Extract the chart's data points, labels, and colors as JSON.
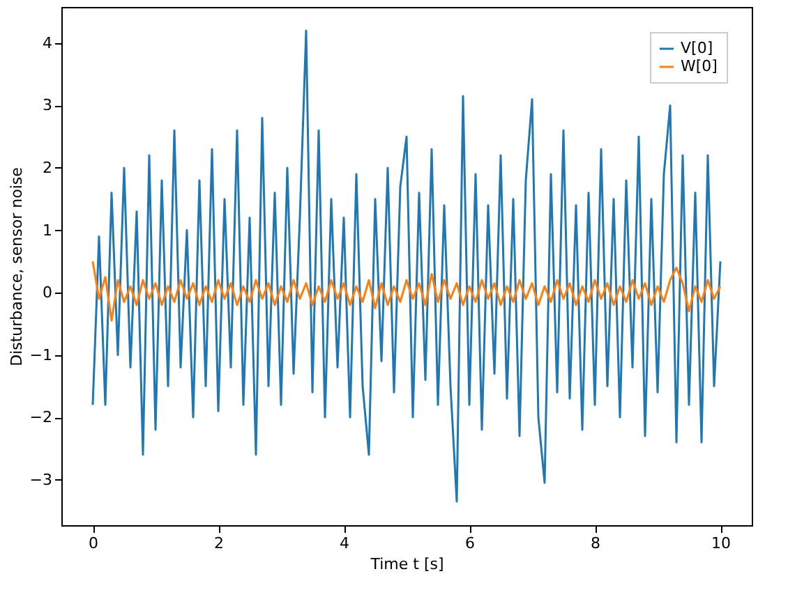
{
  "chart_data": {
    "type": "line",
    "xlabel": "Time t [s]",
    "ylabel": "Disturbance, sensor noise",
    "x": [
      0,
      0.1,
      0.2,
      0.3,
      0.4,
      0.5,
      0.6,
      0.7,
      0.8,
      0.9,
      1,
      1.1,
      1.2,
      1.3,
      1.4,
      1.5,
      1.6,
      1.7,
      1.8,
      1.9,
      2,
      2.1,
      2.2,
      2.3,
      2.4,
      2.5,
      2.6,
      2.7,
      2.8,
      2.9,
      3,
      3.1,
      3.2,
      3.3,
      3.4,
      3.5,
      3.6,
      3.7,
      3.8,
      3.9,
      4,
      4.1,
      4.2,
      4.3,
      4.4,
      4.5,
      4.6,
      4.7,
      4.8,
      4.9,
      5,
      5.1,
      5.2,
      5.3,
      5.4,
      5.5,
      5.6,
      5.7,
      5.8,
      5.9,
      6,
      6.1,
      6.2,
      6.3,
      6.4,
      6.5,
      6.6,
      6.7,
      6.8,
      6.9,
      7,
      7.1,
      7.2,
      7.3,
      7.4,
      7.5,
      7.6,
      7.7,
      7.8,
      7.9,
      8,
      8.1,
      8.2,
      8.3,
      8.4,
      8.5,
      8.6,
      8.7,
      8.8,
      8.9,
      9,
      9.1,
      9.2,
      9.3,
      9.4,
      9.5,
      9.6,
      9.7,
      9.8,
      9.9,
      10
    ],
    "series": [
      {
        "name": "V[0]",
        "color": "#1f77b4",
        "values": [
          -1.8,
          0.9,
          -1.8,
          1.6,
          -1.0,
          2.0,
          -1.2,
          1.3,
          -2.6,
          2.2,
          -2.2,
          1.8,
          -1.5,
          2.6,
          -1.2,
          1.0,
          -2.0,
          1.8,
          -1.5,
          2.3,
          -1.9,
          1.5,
          -1.2,
          2.6,
          -1.8,
          1.2,
          -2.6,
          2.8,
          -1.5,
          1.6,
          -1.8,
          2.0,
          -1.3,
          1.2,
          4.2,
          -1.6,
          2.6,
          -2.0,
          1.5,
          -1.2,
          1.2,
          -2.0,
          1.9,
          -1.5,
          -2.6,
          1.5,
          -1.1,
          2.0,
          -1.6,
          1.7,
          2.5,
          -2.0,
          1.6,
          -1.4,
          2.3,
          -1.8,
          1.4,
          -1.5,
          -3.35,
          3.15,
          -1.8,
          1.9,
          -2.2,
          1.4,
          -1.3,
          2.2,
          -1.7,
          1.5,
          -2.3,
          1.8,
          3.1,
          -2.0,
          -3.05,
          1.9,
          -1.6,
          2.6,
          -1.7,
          1.4,
          -2.2,
          1.6,
          -1.8,
          2.3,
          -1.5,
          1.5,
          -2.0,
          1.8,
          -1.2,
          2.5,
          -2.3,
          1.5,
          -1.6,
          1.9,
          3.0,
          -2.4,
          2.2,
          -1.8,
          1.6,
          -2.4,
          2.2,
          -1.5,
          0.5
        ]
      },
      {
        "name": "W[0]",
        "color": "#ff7f0e",
        "values": [
          0.5,
          -0.1,
          0.25,
          -0.45,
          0.2,
          -0.15,
          0.1,
          -0.2,
          0.2,
          -0.1,
          0.15,
          -0.2,
          0.1,
          -0.15,
          0.2,
          -0.1,
          0.15,
          -0.2,
          0.1,
          -0.15,
          0.2,
          -0.1,
          0.15,
          -0.2,
          0.1,
          -0.15,
          0.2,
          -0.1,
          0.15,
          -0.2,
          0.1,
          -0.15,
          0.2,
          -0.1,
          0.15,
          -0.2,
          0.1,
          -0.15,
          0.2,
          -0.1,
          0.15,
          -0.2,
          0.1,
          -0.15,
          0.2,
          -0.25,
          0.15,
          -0.2,
          0.1,
          -0.15,
          0.2,
          -0.1,
          0.15,
          -0.2,
          0.3,
          -0.15,
          0.2,
          -0.1,
          0.15,
          -0.2,
          0.1,
          -0.15,
          0.2,
          -0.1,
          0.15,
          -0.2,
          0.1,
          -0.15,
          0.2,
          -0.1,
          0.15,
          -0.2,
          0.1,
          -0.15,
          0.2,
          -0.1,
          0.15,
          -0.2,
          0.1,
          -0.15,
          0.2,
          -0.1,
          0.15,
          -0.2,
          0.1,
          -0.15,
          0.2,
          -0.1,
          0.15,
          -0.2,
          0.1,
          -0.15,
          0.2,
          0.4,
          0.15,
          -0.3,
          0.1,
          -0.15,
          0.2,
          -0.1,
          0.1
        ]
      }
    ],
    "xlim": [
      -0.5,
      10.5
    ],
    "xticks": [
      0,
      2,
      4,
      6,
      8,
      10
    ],
    "ylim": [
      -3.73,
      4.58
    ],
    "yticks": [
      -3,
      -2,
      -1,
      0,
      1,
      2,
      3,
      4
    ],
    "grid": false,
    "legend": "top right",
    "marker": "none",
    "line_style": "solid"
  }
}
